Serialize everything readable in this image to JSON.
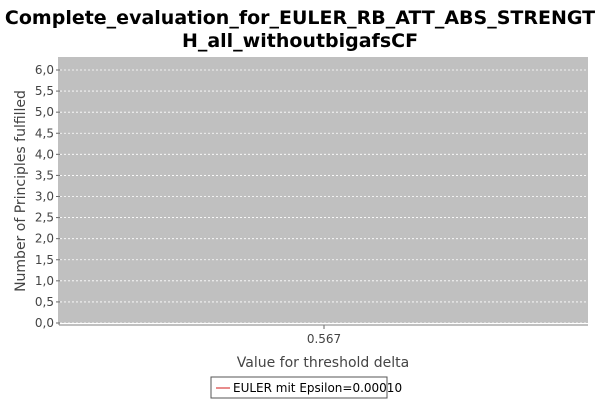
{
  "chart_data": {
    "type": "line",
    "title_lines": [
      "Complete_evaluation_for_EULER_RB_ATT_ABS_STRENGT",
      "H_all_withoutbigafsCF"
    ],
    "xlabel": "Value for threshold delta",
    "ylabel": "Number of Principles fulfilled",
    "ylim": [
      0.0,
      6.0
    ],
    "y_ticks": [
      "0,0",
      "0,5",
      "1,0",
      "1,5",
      "2,0",
      "2,5",
      "3,0",
      "3,5",
      "4,0",
      "4,5",
      "5,0",
      "5,5",
      "6,0"
    ],
    "x_ticks": [
      "0.567"
    ],
    "grid": true,
    "legend_position": "bottom",
    "series": [
      {
        "name": "EULER mit Epsilon=0.00010",
        "color": "#e06666",
        "points": []
      }
    ]
  }
}
